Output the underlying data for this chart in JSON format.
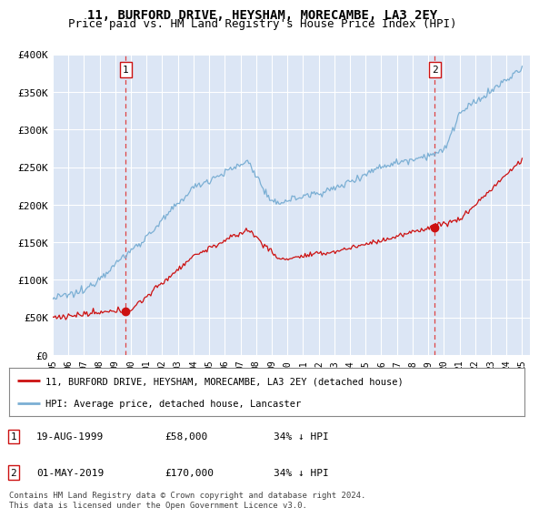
{
  "title": "11, BURFORD DRIVE, HEYSHAM, MORECAMBE, LA3 2EY",
  "subtitle": "Price paid vs. HM Land Registry's House Price Index (HPI)",
  "ylim": [
    0,
    400000
  ],
  "yticks": [
    0,
    50000,
    100000,
    150000,
    200000,
    250000,
    300000,
    350000,
    400000
  ],
  "ytick_labels": [
    "£0",
    "£50K",
    "£100K",
    "£150K",
    "£200K",
    "£250K",
    "£300K",
    "£350K",
    "£400K"
  ],
  "plot_bg_color": "#dce6f5",
  "grid_color": "#ffffff",
  "hpi_color": "#7bafd4",
  "price_color": "#cc1111",
  "dashed_color": "#dd4444",
  "transaction1_price": 58000,
  "transaction1_date": "19-AUG-1999",
  "transaction1_label": "34% ↓ HPI",
  "transaction2_price": 170000,
  "transaction2_date": "01-MAY-2019",
  "transaction2_label": "34% ↓ HPI",
  "legend_label1": "11, BURFORD DRIVE, HEYSHAM, MORECAMBE, LA3 2EY (detached house)",
  "legend_label2": "HPI: Average price, detached house, Lancaster",
  "footer": "Contains HM Land Registry data © Crown copyright and database right 2024.\nThis data is licensed under the Open Government Licence v3.0.",
  "title_fontsize": 10,
  "subtitle_fontsize": 9,
  "tick_fontsize": 8
}
